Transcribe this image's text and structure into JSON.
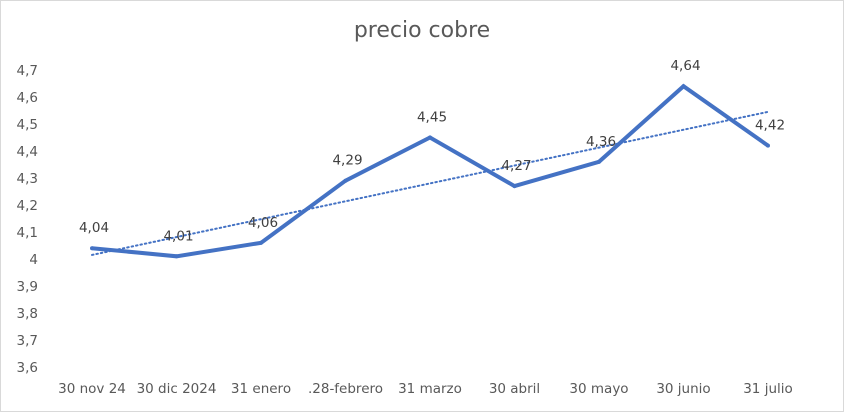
{
  "chart_data": {
    "type": "line",
    "title": "precio cobre",
    "xlabel": "",
    "ylabel": "",
    "categories": [
      "30 nov 24",
      "30 dic 2024",
      "31 enero",
      ".28-febrero",
      "31 marzo",
      "30 abril",
      "30 mayo",
      "30 junio",
      "31 julio"
    ],
    "series": [
      {
        "values": [
          4.04,
          4.01,
          4.06,
          4.29,
          4.45,
          4.27,
          4.36,
          4.64,
          4.42
        ],
        "color": "#4472C4",
        "data_labels": [
          "4,04",
          "4,01",
          "4,06",
          "4,29",
          "4,45",
          "4,27",
          "4,36",
          "4,64",
          "4,42"
        ]
      }
    ],
    "trendline": {
      "type": "linear",
      "style": "dotted",
      "color": "#4472C4",
      "start": 4.015,
      "end": 4.545
    },
    "ylim": [
      3.6,
      4.7
    ],
    "yticks": [
      "3,6",
      "3,7",
      "3,8",
      "3,9",
      "4",
      "4,1",
      "4,2",
      "4,3",
      "4,4",
      "4,5",
      "4,6",
      "4,7"
    ],
    "grid": false,
    "legend": "none"
  }
}
